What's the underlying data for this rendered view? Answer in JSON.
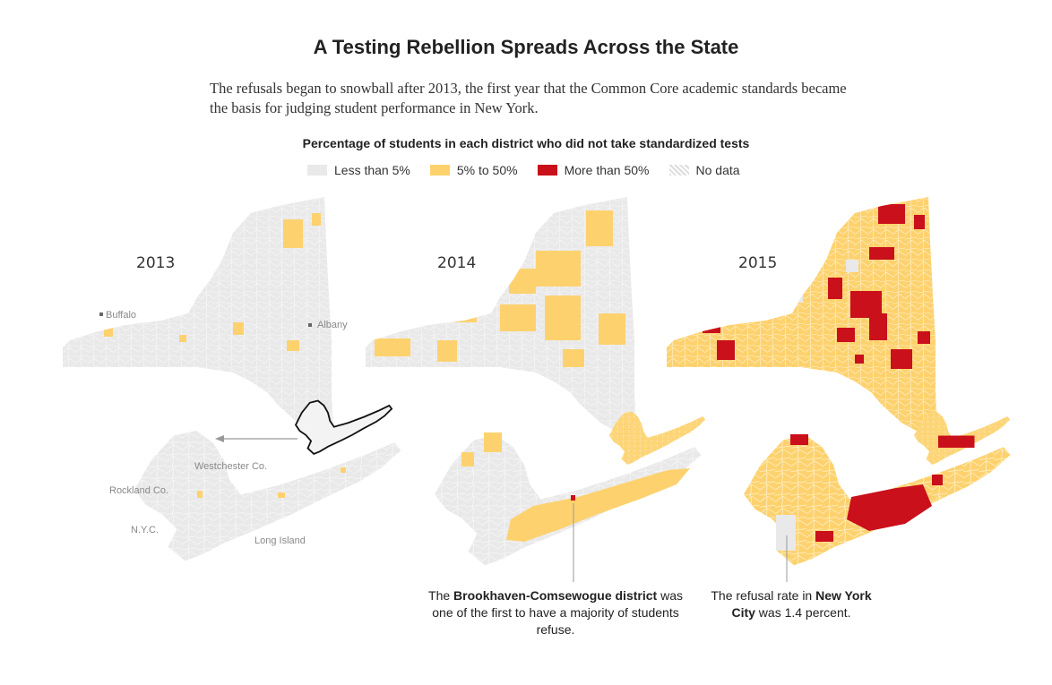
{
  "header": {
    "title": "A Testing Rebellion Spreads Across the State",
    "intro": "The refusals began to snowball after 2013, the first year that the Common Core academic standards became the basis for judging student performance in New York."
  },
  "legend": {
    "title": "Percentage of students in each district who did not take standardized tests",
    "items": [
      {
        "label": "Less than 5%",
        "color": "#e9e9e9"
      },
      {
        "label": "5% to 50%",
        "color": "#fdd26e"
      },
      {
        "label": "More than 50%",
        "color": "#c9101b"
      },
      {
        "label": "No data",
        "color": "hatched"
      }
    ]
  },
  "maps": [
    {
      "year": "2013",
      "dominant": "less than 5%"
    },
    {
      "year": "2014",
      "dominant": "mixed less than 5% and 5% to 50%"
    },
    {
      "year": "2015",
      "dominant": "5% to 50% with many more than 50%"
    }
  ],
  "places": {
    "buffalo": "Buffalo",
    "albany": "Albany",
    "westchester": "Westchester Co.",
    "rockland": "Rockland Co.",
    "nyc": "N.Y.C.",
    "long_island": "Long Island"
  },
  "annotations": {
    "brookhaven": {
      "pre": "The ",
      "bold": "Brookhaven-Comsewogue district",
      "post": " was one of the first to have a majority of students refuse."
    },
    "nyc": {
      "pre": "The refusal rate in ",
      "bold": "New York City",
      "post": " was 1.4 percent."
    }
  },
  "colors": {
    "low": "#e9e9e9",
    "mid": "#fdd26e",
    "high": "#c9101b",
    "outline": "#222222"
  }
}
